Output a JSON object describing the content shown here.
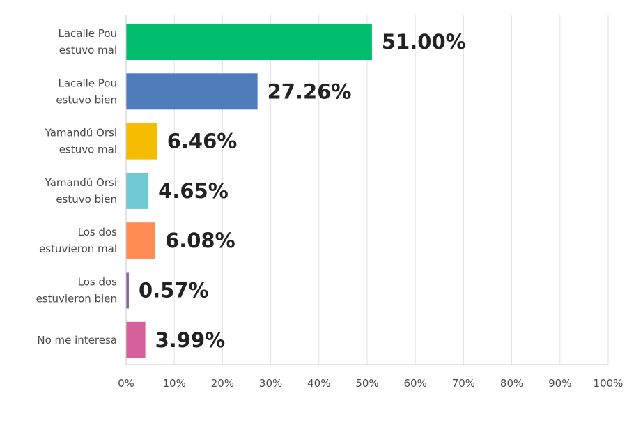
{
  "chart_data": {
    "type": "bar",
    "orientation": "horizontal",
    "categories": [
      [
        "Lacalle Pou",
        "estuvo mal"
      ],
      [
        "Lacalle Pou",
        "estuvo bien"
      ],
      [
        "Yamandú Orsi",
        "estuvo mal"
      ],
      [
        "Yamandú Orsi",
        "estuvo bien"
      ],
      [
        "Los dos",
        "estuvieron mal"
      ],
      [
        "Los dos",
        "estuvieron bien"
      ],
      [
        "No me interesa"
      ]
    ],
    "values": [
      51.0,
      27.26,
      6.46,
      4.65,
      6.08,
      0.57,
      3.99
    ],
    "value_labels": [
      "51.00%",
      "27.26%",
      "6.46%",
      "4.65%",
      "6.08%",
      "0.57%",
      "3.99%"
    ],
    "colors": [
      "#00be6e",
      "#4f7cbb",
      "#f5bc00",
      "#6ec9d2",
      "#ff8c52",
      "#8a5fa0",
      "#d5609b"
    ],
    "xlim": [
      0,
      100
    ],
    "xticks": [
      "0%",
      "10%",
      "20%",
      "30%",
      "40%",
      "50%",
      "60%",
      "70%",
      "80%",
      "90%",
      "100%"
    ],
    "grid": true,
    "title": "",
    "xlabel": "",
    "ylabel": ""
  }
}
